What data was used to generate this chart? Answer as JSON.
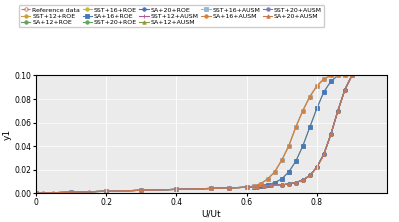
{
  "title": "",
  "xlabel": "U/Ut",
  "ylabel": "y1",
  "xlim": [
    0,
    1.0
  ],
  "ylim": [
    0,
    0.1
  ],
  "yticks": [
    0.0,
    0.02,
    0.04,
    0.06,
    0.08,
    0.1
  ],
  "xticks": [
    0,
    0.2,
    0.4,
    0.6,
    0.8
  ],
  "background_color": "#ebebeb",
  "legend_fontsize": 4.5,
  "axis_fontsize": 6.5,
  "tick_fontsize": 5.5,
  "series": [
    {
      "label": "Reference data",
      "color": "#d47070",
      "marker": "o",
      "markersize": 2.5,
      "linewidth": 0.8,
      "linestyle": "--",
      "x": [
        0.0,
        0.02,
        0.05,
        0.1,
        0.15,
        0.2,
        0.3,
        0.4,
        0.5,
        0.55,
        0.6,
        0.63,
        0.65,
        0.67,
        0.7,
        0.72,
        0.74,
        0.76,
        0.78,
        0.8,
        0.82,
        0.84,
        0.86,
        0.88,
        0.9
      ],
      "y": [
        0.0,
        0.0002,
        0.0004,
        0.0008,
        0.0012,
        0.0016,
        0.0024,
        0.0032,
        0.004,
        0.0045,
        0.005,
        0.0055,
        0.006,
        0.0065,
        0.007,
        0.0078,
        0.009,
        0.011,
        0.015,
        0.022,
        0.033,
        0.05,
        0.07,
        0.088,
        0.1
      ]
    },
    {
      "label": "SST+12+ROE",
      "color": "#c8a040",
      "marker": "o",
      "markersize": 2.5,
      "linewidth": 0.8,
      "linestyle": "-",
      "x": [
        0.0,
        0.1,
        0.2,
        0.3,
        0.4,
        0.5,
        0.55,
        0.6,
        0.63,
        0.65,
        0.67,
        0.7,
        0.72,
        0.74,
        0.76,
        0.78,
        0.8,
        0.82,
        0.84,
        0.86,
        0.88,
        0.9
      ],
      "y": [
        0.0,
        0.0008,
        0.0016,
        0.0024,
        0.0032,
        0.004,
        0.0045,
        0.005,
        0.0055,
        0.006,
        0.0065,
        0.007,
        0.0078,
        0.009,
        0.011,
        0.015,
        0.022,
        0.033,
        0.05,
        0.07,
        0.088,
        0.1
      ]
    },
    {
      "label": "SA+12+ROE",
      "color": "#6a9a6a",
      "marker": "o",
      "markersize": 2.5,
      "linewidth": 0.8,
      "linestyle": "-",
      "x": [
        0.0,
        0.1,
        0.2,
        0.3,
        0.4,
        0.5,
        0.55,
        0.6,
        0.63,
        0.65,
        0.67,
        0.7,
        0.72,
        0.74,
        0.76,
        0.78,
        0.8,
        0.82,
        0.84,
        0.86,
        0.88,
        0.9
      ],
      "y": [
        0.0,
        0.0008,
        0.0016,
        0.0024,
        0.0032,
        0.004,
        0.0045,
        0.005,
        0.0055,
        0.006,
        0.0065,
        0.007,
        0.0078,
        0.009,
        0.011,
        0.015,
        0.022,
        0.033,
        0.05,
        0.07,
        0.088,
        0.1
      ]
    },
    {
      "label": "SST+16+ROE",
      "color": "#c8b830",
      "marker": "o",
      "markersize": 2.5,
      "linewidth": 0.8,
      "linestyle": "-",
      "x": [
        0.0,
        0.1,
        0.2,
        0.3,
        0.4,
        0.5,
        0.55,
        0.6,
        0.62,
        0.64,
        0.66,
        0.68,
        0.7,
        0.72,
        0.74,
        0.76,
        0.78,
        0.8,
        0.82,
        0.84,
        0.86,
        0.88,
        0.9
      ],
      "y": [
        0.0,
        0.0008,
        0.0016,
        0.0024,
        0.0032,
        0.004,
        0.0044,
        0.005,
        0.0055,
        0.006,
        0.007,
        0.009,
        0.012,
        0.018,
        0.027,
        0.04,
        0.056,
        0.072,
        0.086,
        0.095,
        0.1,
        0.1,
        0.1
      ]
    },
    {
      "label": "SA+16+ROE",
      "color": "#4878b8",
      "marker": "s",
      "markersize": 2.5,
      "linewidth": 0.8,
      "linestyle": "-",
      "x": [
        0.0,
        0.1,
        0.2,
        0.3,
        0.4,
        0.5,
        0.55,
        0.6,
        0.62,
        0.64,
        0.66,
        0.68,
        0.7,
        0.72,
        0.74,
        0.76,
        0.78,
        0.8,
        0.82,
        0.84,
        0.86,
        0.88,
        0.9
      ],
      "y": [
        0.0,
        0.0008,
        0.0016,
        0.0024,
        0.0032,
        0.004,
        0.0044,
        0.005,
        0.0055,
        0.006,
        0.007,
        0.009,
        0.012,
        0.018,
        0.027,
        0.04,
        0.056,
        0.072,
        0.086,
        0.095,
        0.1,
        0.1,
        0.1
      ]
    },
    {
      "label": "SST+20+ROE",
      "color": "#60a860",
      "marker": "o",
      "markersize": 2.5,
      "linewidth": 0.8,
      "linestyle": "-",
      "x": [
        0.0,
        0.1,
        0.2,
        0.3,
        0.4,
        0.5,
        0.55,
        0.6,
        0.63,
        0.65,
        0.67,
        0.7,
        0.72,
        0.74,
        0.76,
        0.78,
        0.8,
        0.82,
        0.84,
        0.86,
        0.88,
        0.9
      ],
      "y": [
        0.0,
        0.0008,
        0.0016,
        0.0024,
        0.0032,
        0.004,
        0.0045,
        0.005,
        0.0055,
        0.006,
        0.0065,
        0.007,
        0.0078,
        0.009,
        0.011,
        0.015,
        0.022,
        0.033,
        0.05,
        0.07,
        0.088,
        0.1
      ]
    },
    {
      "label": "SA+20+ROE",
      "color": "#4870b8",
      "marker": "o",
      "markersize": 2.5,
      "linewidth": 0.8,
      "linestyle": "-",
      "x": [
        0.0,
        0.1,
        0.2,
        0.3,
        0.4,
        0.5,
        0.55,
        0.6,
        0.63,
        0.65,
        0.67,
        0.7,
        0.72,
        0.74,
        0.76,
        0.78,
        0.8,
        0.82,
        0.84,
        0.86,
        0.88,
        0.9
      ],
      "y": [
        0.0,
        0.0008,
        0.0016,
        0.0024,
        0.0032,
        0.004,
        0.0045,
        0.005,
        0.0055,
        0.006,
        0.0065,
        0.007,
        0.0078,
        0.009,
        0.011,
        0.015,
        0.022,
        0.033,
        0.05,
        0.07,
        0.088,
        0.1
      ]
    },
    {
      "label": "SST+12+AUSM",
      "color": "#b05898",
      "marker": "+",
      "markersize": 3.5,
      "linewidth": 0.8,
      "linestyle": "-",
      "x": [
        0.0,
        0.1,
        0.2,
        0.3,
        0.4,
        0.5,
        0.55,
        0.6,
        0.63,
        0.65,
        0.67,
        0.7,
        0.72,
        0.74,
        0.76,
        0.78,
        0.8,
        0.82,
        0.84,
        0.86,
        0.88,
        0.9
      ],
      "y": [
        0.0,
        0.0008,
        0.0016,
        0.0024,
        0.0032,
        0.004,
        0.0045,
        0.005,
        0.0055,
        0.006,
        0.0065,
        0.007,
        0.0078,
        0.009,
        0.011,
        0.015,
        0.022,
        0.033,
        0.05,
        0.07,
        0.088,
        0.1
      ]
    },
    {
      "label": "SA+12+AUSM",
      "color": "#909838",
      "marker": "^",
      "markersize": 2.5,
      "linewidth": 0.8,
      "linestyle": "-",
      "x": [
        0.0,
        0.1,
        0.2,
        0.3,
        0.4,
        0.5,
        0.55,
        0.6,
        0.62,
        0.64,
        0.66,
        0.68,
        0.7,
        0.72,
        0.74,
        0.76,
        0.78,
        0.8,
        0.82,
        0.84,
        0.86,
        0.88,
        0.9
      ],
      "y": [
        0.0,
        0.0008,
        0.0016,
        0.0024,
        0.0032,
        0.004,
        0.0044,
        0.005,
        0.006,
        0.008,
        0.012,
        0.018,
        0.028,
        0.04,
        0.056,
        0.07,
        0.082,
        0.091,
        0.097,
        0.1,
        0.1,
        0.1,
        0.1
      ]
    },
    {
      "label": "SST+16+AUSM",
      "color": "#90b8d8",
      "marker": "s",
      "markersize": 2.5,
      "linewidth": 0.8,
      "linestyle": "-",
      "x": [
        0.0,
        0.1,
        0.2,
        0.3,
        0.4,
        0.5,
        0.55,
        0.6,
        0.62,
        0.64,
        0.66,
        0.68,
        0.7,
        0.72,
        0.74,
        0.76,
        0.78,
        0.8,
        0.82,
        0.84,
        0.86,
        0.88,
        0.9
      ],
      "y": [
        0.0,
        0.0008,
        0.0016,
        0.0024,
        0.0032,
        0.004,
        0.0044,
        0.005,
        0.006,
        0.008,
        0.012,
        0.018,
        0.028,
        0.04,
        0.056,
        0.07,
        0.082,
        0.091,
        0.097,
        0.1,
        0.1,
        0.1,
        0.1
      ]
    },
    {
      "label": "SA+16+AUSM",
      "color": "#d88038",
      "marker": "o",
      "markersize": 2.5,
      "linewidth": 0.8,
      "linestyle": "-",
      "x": [
        0.0,
        0.1,
        0.2,
        0.3,
        0.4,
        0.5,
        0.55,
        0.6,
        0.62,
        0.64,
        0.66,
        0.68,
        0.7,
        0.72,
        0.74,
        0.76,
        0.78,
        0.8,
        0.82,
        0.84,
        0.86,
        0.88,
        0.9
      ],
      "y": [
        0.0,
        0.0008,
        0.0016,
        0.0024,
        0.0032,
        0.004,
        0.0044,
        0.005,
        0.006,
        0.008,
        0.012,
        0.018,
        0.028,
        0.04,
        0.056,
        0.07,
        0.082,
        0.091,
        0.097,
        0.1,
        0.1,
        0.1,
        0.1
      ]
    },
    {
      "label": "SST+20+AUSM",
      "color": "#7878c0",
      "marker": "o",
      "markersize": 2.5,
      "linewidth": 0.8,
      "linestyle": "-",
      "x": [
        0.0,
        0.1,
        0.2,
        0.3,
        0.4,
        0.5,
        0.55,
        0.6,
        0.63,
        0.65,
        0.67,
        0.7,
        0.72,
        0.74,
        0.76,
        0.78,
        0.8,
        0.82,
        0.84,
        0.86,
        0.88,
        0.9
      ],
      "y": [
        0.0,
        0.0008,
        0.0016,
        0.0024,
        0.0032,
        0.004,
        0.0045,
        0.005,
        0.0055,
        0.006,
        0.0065,
        0.007,
        0.0078,
        0.009,
        0.011,
        0.015,
        0.022,
        0.033,
        0.05,
        0.07,
        0.088,
        0.1
      ]
    },
    {
      "label": "SA+20+AUSM",
      "color": "#c87850",
      "marker": "^",
      "markersize": 2.5,
      "linewidth": 0.8,
      "linestyle": "-",
      "x": [
        0.0,
        0.1,
        0.2,
        0.3,
        0.4,
        0.5,
        0.55,
        0.6,
        0.63,
        0.65,
        0.67,
        0.7,
        0.72,
        0.74,
        0.76,
        0.78,
        0.8,
        0.82,
        0.84,
        0.86,
        0.88,
        0.9
      ],
      "y": [
        0.0,
        0.0008,
        0.0016,
        0.0024,
        0.0032,
        0.004,
        0.0045,
        0.005,
        0.0055,
        0.006,
        0.0065,
        0.007,
        0.0078,
        0.009,
        0.011,
        0.015,
        0.022,
        0.033,
        0.05,
        0.07,
        0.088,
        0.1
      ]
    }
  ]
}
